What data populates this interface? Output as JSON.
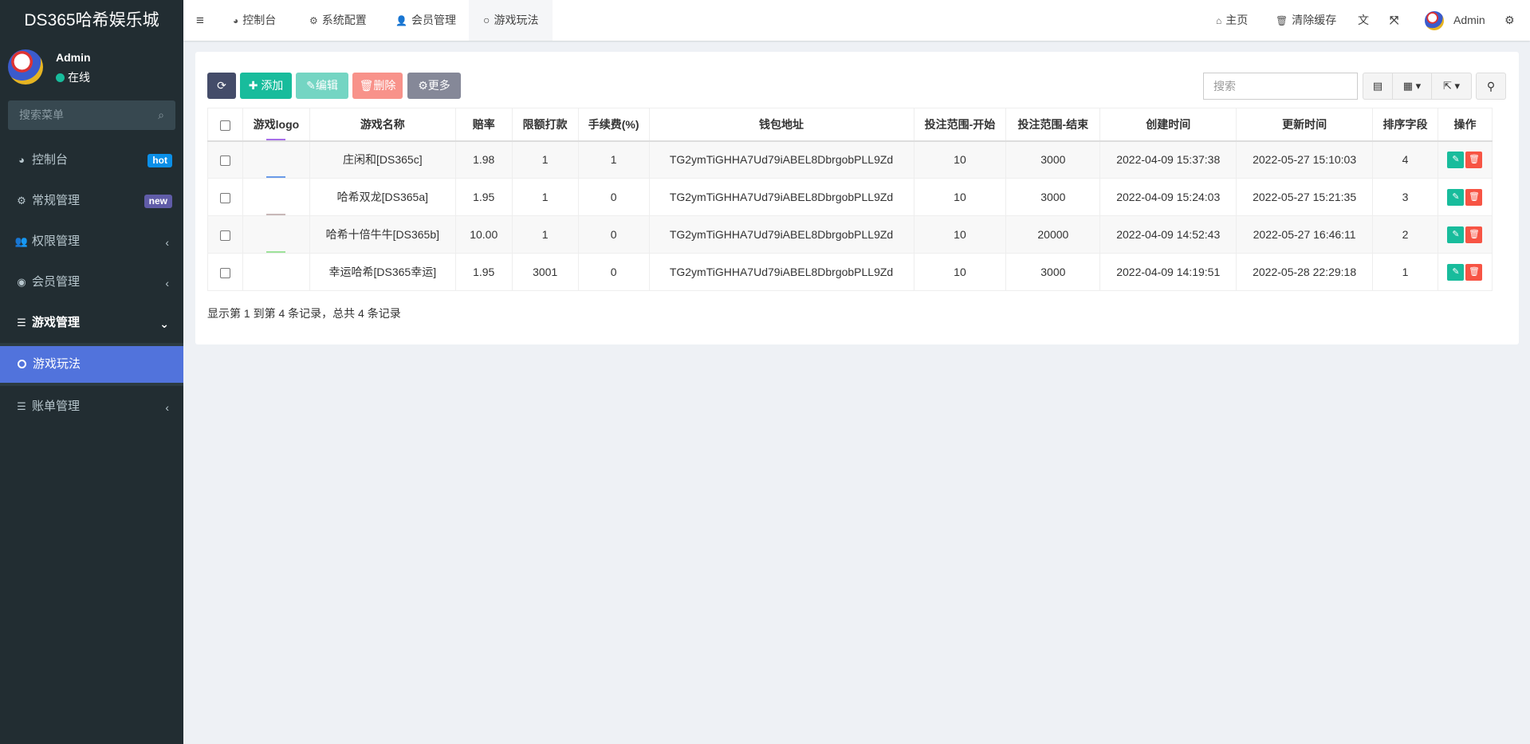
{
  "brand": {
    "title": "DS365哈希娱乐城"
  },
  "user": {
    "name": "Admin",
    "status": "在线",
    "status_color": "#18bc9c"
  },
  "sidebar": {
    "search_placeholder": "搜索菜单",
    "items": [
      {
        "label": "控制台",
        "icon": "dashboard-icon",
        "badge": "hot",
        "badge_color": "#0b8fe8"
      },
      {
        "label": "常规管理",
        "icon": "cogs-icon",
        "badge": "new",
        "badge_color": "#605ca8"
      },
      {
        "label": "权限管理",
        "icon": "users-icon"
      },
      {
        "label": "会员管理",
        "icon": "user-circle-icon"
      },
      {
        "label": "游戏管理",
        "icon": "list-icon",
        "open": true,
        "children": [
          {
            "label": "游戏玩法",
            "active": true
          }
        ]
      },
      {
        "label": "账单管理",
        "icon": "list-icon"
      }
    ]
  },
  "header": {
    "tabs": [
      {
        "label": "控制台"
      },
      {
        "label": "系统配置"
      },
      {
        "label": "会员管理"
      },
      {
        "label": "游戏玩法",
        "active": true
      }
    ],
    "home": "主页",
    "clear_cache": "清除缓存",
    "admin": "Admin"
  },
  "toolbar": {
    "add": "添加",
    "edit": "编辑",
    "delete": "删除",
    "more": "更多",
    "search_placeholder": "搜索"
  },
  "table": {
    "columns": [
      "游戏logo",
      "游戏名称",
      "赔率",
      "限额打款",
      "手续费(%)",
      "钱包地址",
      "投注范围-开始",
      "投注范围-结束",
      "创建时间",
      "更新时间",
      "排序字段",
      "操作"
    ],
    "rows": [
      {
        "logo_color": "#a66ee8",
        "name": "庄闲和[DS365c]",
        "odds": "1.98",
        "limit": "1",
        "fee": "1",
        "wallet": "TG2ymTiGHHA7Ud79iABEL8DbrgobPLL9Zd",
        "start": "10",
        "end": "3000",
        "created": "2022-04-09 15:37:38",
        "updated": "2022-05-27 15:10:03",
        "sort": "4"
      },
      {
        "logo_color": "#6b9be8",
        "name": "哈希双龙[DS365a]",
        "odds": "1.95",
        "limit": "1",
        "fee": "0",
        "wallet": "TG2ymTiGHHA7Ud79iABEL8DbrgobPLL9Zd",
        "start": "10",
        "end": "3000",
        "created": "2022-04-09 15:24:03",
        "updated": "2022-05-27 15:21:35",
        "sort": "3"
      },
      {
        "logo_color": "#c8b8b8",
        "name": "哈希十倍牛牛[DS365b]",
        "odds": "10.00",
        "limit": "1",
        "fee": "0",
        "wallet": "TG2ymTiGHHA7Ud79iABEL8DbrgobPLL9Zd",
        "start": "10",
        "end": "20000",
        "created": "2022-04-09 14:52:43",
        "updated": "2022-05-27 16:46:11",
        "sort": "2"
      },
      {
        "logo_color": "#9ee29a",
        "name": "幸运哈希[DS365幸运]",
        "odds": "1.95",
        "limit": "3001",
        "fee": "0",
        "wallet": "TG2ymTiGHHA7Ud79iABEL8DbrgobPLL9Zd",
        "start": "10",
        "end": "3000",
        "created": "2022-04-09 14:19:51",
        "updated": "2022-05-28 22:29:18",
        "sort": "1"
      }
    ]
  },
  "footer": {
    "summary": "显示第 1 到第 4 条记录，总共 4 条记录"
  }
}
